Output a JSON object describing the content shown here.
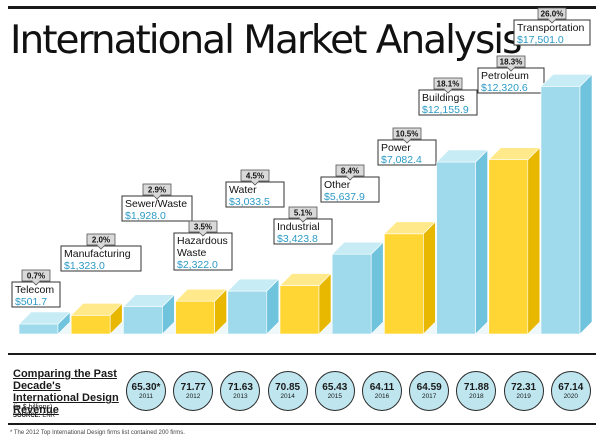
{
  "title": "International Market Analysis",
  "colors": {
    "blue_front": "#9edaec",
    "blue_side": "#6fc3dc",
    "blue_top": "#c8ecf5",
    "yellow_front": "#ffd633",
    "yellow_side": "#e8b700",
    "yellow_top": "#ffe98a",
    "value_text": "#2c9ac5"
  },
  "chart_data": {
    "type": "bar",
    "categories": [
      "Telecom",
      "Manufacturing",
      "Sewer/Waste",
      "Hazardous Waste",
      "Water",
      "Industrial",
      "Other",
      "Power",
      "Buildings",
      "Petroleum",
      "Transportation"
    ],
    "values": [
      501.7,
      1323.0,
      1928.0,
      2322.0,
      3033.5,
      3423.8,
      5637.9,
      7082.4,
      12155.9,
      12320.6,
      17501.0
    ],
    "value_labels": [
      "$501.7",
      "$1,323.0",
      "$1,928.0",
      "$2,322.0",
      "$3,033.5",
      "$3,423.8",
      "$5,637.9",
      "$7,082.4",
      "$12,155.9",
      "$12,320.6",
      "$17,501.0"
    ],
    "percent_labels": [
      "0.7%",
      "2.0%",
      "2.9%",
      "3.5%",
      "4.5%",
      "5.1%",
      "8.4%",
      "10.5%",
      "18.1%",
      "18.3%",
      "26.0%"
    ],
    "bar_colors": [
      "blue",
      "yellow",
      "blue",
      "yellow",
      "blue",
      "yellow",
      "blue",
      "yellow",
      "blue",
      "yellow",
      "blue"
    ],
    "unit": "$ billions"
  },
  "decade": {
    "title": "Comparing the Past Decade's International Design Revenue",
    "subtitle": "(in $ billions)",
    "source_label": "SOURCE:",
    "source": "ENR",
    "items": [
      {
        "value": "65.30*",
        "year": "2011"
      },
      {
        "value": "71.77",
        "year": "2012"
      },
      {
        "value": "71.63",
        "year": "2013"
      },
      {
        "value": "70.85",
        "year": "2014"
      },
      {
        "value": "65.43",
        "year": "2015"
      },
      {
        "value": "64.11",
        "year": "2016"
      },
      {
        "value": "64.59",
        "year": "2017"
      },
      {
        "value": "71.88",
        "year": "2018"
      },
      {
        "value": "72.31",
        "year": "2019"
      },
      {
        "value": "67.14",
        "year": "2020"
      }
    ]
  },
  "footnote": "* The 2012 Top International Design firms list contained 200 firms."
}
